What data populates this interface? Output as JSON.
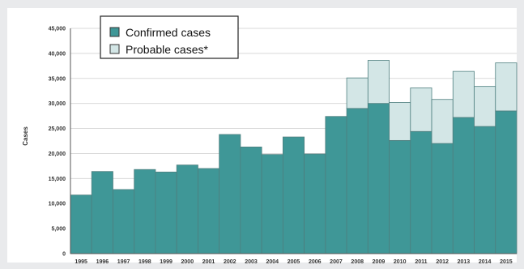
{
  "chart_data": {
    "type": "bar",
    "stacked": true,
    "title": "",
    "xlabel": "",
    "ylabel": "Cases",
    "ylim": [
      0,
      45000
    ],
    "yticks": [
      0,
      5000,
      10000,
      15000,
      20000,
      25000,
      30000,
      35000,
      40000,
      45000
    ],
    "ytick_labels": [
      "0",
      "5,000",
      "10,000",
      "15,000",
      "20,000",
      "25,000",
      "30,000",
      "35,000",
      "40,000",
      "45,000"
    ],
    "grid": true,
    "legend_position": "top-left",
    "categories": [
      "1995",
      "1996",
      "1997",
      "1998",
      "1999",
      "2000",
      "2001",
      "2002",
      "2003",
      "2004",
      "2005",
      "2006",
      "2007",
      "2008",
      "2009",
      "2010",
      "2011",
      "2012",
      "2013",
      "2014",
      "2015"
    ],
    "series": [
      {
        "name": "Confirmed cases",
        "color": "#3f9797",
        "values": [
          11700,
          16400,
          12800,
          16800,
          16300,
          17700,
          17000,
          23800,
          21300,
          19800,
          23300,
          19900,
          27400,
          29000,
          30000,
          22600,
          24400,
          22000,
          27200,
          25400,
          28500
        ]
      },
      {
        "name": "Probable cases*",
        "color": "#d3e6e6",
        "values": [
          0,
          0,
          0,
          0,
          0,
          0,
          0,
          0,
          0,
          0,
          0,
          0,
          0,
          6100,
          8600,
          7600,
          8700,
          8800,
          9200,
          8000,
          9600
        ]
      }
    ]
  }
}
